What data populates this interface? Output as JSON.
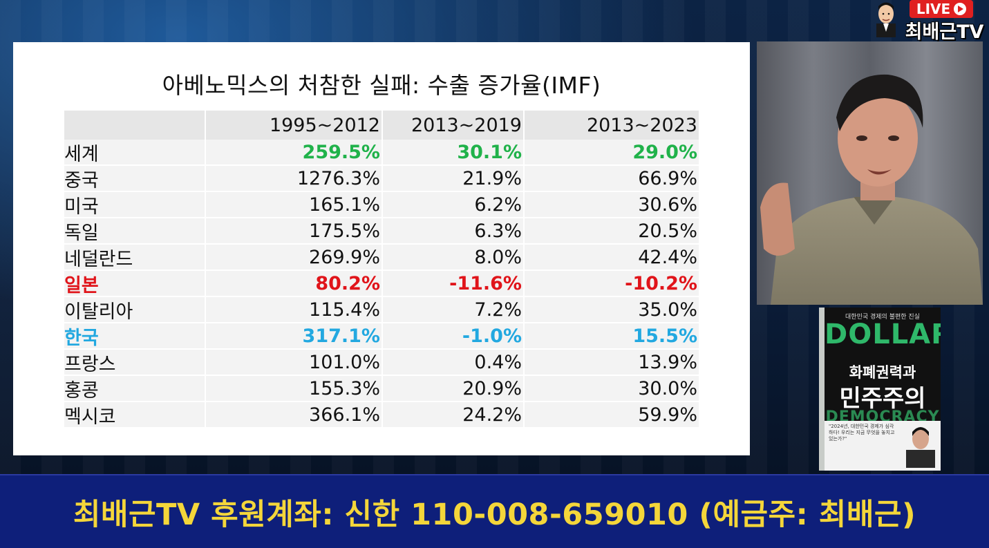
{
  "slide": {
    "title": "아베노믹스의 처참한 실패: 수출 증가율(IMF)",
    "table": {
      "headers": [
        "",
        "1995~2012",
        "2013~2019",
        "2013~2023"
      ],
      "rows": [
        {
          "name": "세계",
          "v1": "259.5%",
          "v2": "30.1%",
          "v3": "29.0%",
          "highlight": "green"
        },
        {
          "name": "중국",
          "v1": "1276.3%",
          "v2": "21.9%",
          "v3": "66.9%"
        },
        {
          "name": "미국",
          "v1": "165.1%",
          "v2": "6.2%",
          "v3": "30.6%"
        },
        {
          "name": "독일",
          "v1": "175.5%",
          "v2": "6.3%",
          "v3": "20.5%"
        },
        {
          "name": "네덜란드",
          "v1": "269.9%",
          "v2": "8.0%",
          "v3": "42.4%"
        },
        {
          "name": "일본",
          "v1": "80.2%",
          "v2": "-11.6%",
          "v3": "-10.2%",
          "highlight": "red"
        },
        {
          "name": "이탈리아",
          "v1": "115.4%",
          "v2": "7.2%",
          "v3": "35.0%"
        },
        {
          "name": "한국",
          "v1": "317.1%",
          "v2": "-1.0%",
          "v3": "15.5%",
          "highlight": "blue"
        },
        {
          "name": "프랑스",
          "v1": "101.0%",
          "v2": "0.4%",
          "v3": "13.9%"
        },
        {
          "name": "홍콩",
          "v1": "155.3%",
          "v2": "20.9%",
          "v3": "30.0%"
        },
        {
          "name": "멕시코",
          "v1": "366.1%",
          "v2": "24.2%",
          "v3": "59.9%"
        }
      ]
    }
  },
  "logo": {
    "live": "LIVE",
    "name": "최배근TV"
  },
  "book": {
    "subtitle": "대한민국 경제의 불편한 진실",
    "title_en": "DOLLAR",
    "title_line1": "화폐권력과",
    "title_line2": "민주주의",
    "title_en2": "DEMOCRACY",
    "quote": "\"2024년, 대한민국 경제가 심각하다! 우리는 지금 무엇을 놓치고 있는가?\""
  },
  "banner": {
    "text": "최배근TV 후원계좌: 신한 110-008-659010 (예금주: 최배근)"
  },
  "colors": {
    "green": "#20b24a",
    "red": "#e0141a",
    "blue": "#22a8e0",
    "banner_bg": "#0e1f7a",
    "banner_text": "#f4d63a"
  }
}
